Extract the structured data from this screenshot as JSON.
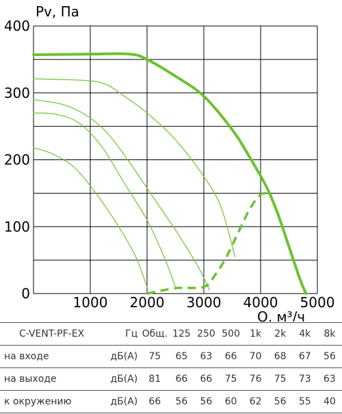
{
  "chart_data": {
    "type": "line",
    "ylabel": "Pv, Па",
    "xlabel": "Q, м³/ч",
    "xlim": [
      0,
      5000
    ],
    "ylim": [
      0,
      400
    ],
    "x_ticks": [
      "1000",
      "2000",
      "3000",
      "4000",
      "5000"
    ],
    "y_ticks": [
      "0",
      "100",
      "200",
      "300",
      "400"
    ],
    "grid": true,
    "series": [
      {
        "role": "main",
        "color": "#6cc132",
        "points": [
          [
            0,
            357
          ],
          [
            1000,
            358
          ],
          [
            1700,
            358
          ],
          [
            2000,
            350
          ],
          [
            2500,
            325
          ],
          [
            3000,
            295
          ],
          [
            3500,
            245
          ],
          [
            3800,
            205
          ],
          [
            4100,
            160
          ],
          [
            4300,
            120
          ],
          [
            4500,
            70
          ],
          [
            4700,
            20
          ],
          [
            4800,
            0
          ]
        ]
      },
      {
        "role": "speed-curve",
        "color": "#7dc343",
        "points": [
          [
            0,
            321
          ],
          [
            500,
            320
          ],
          [
            1000,
            318
          ],
          [
            1300,
            312
          ],
          [
            1600,
            295
          ],
          [
            2000,
            270
          ],
          [
            2500,
            230
          ],
          [
            3000,
            175
          ],
          [
            3300,
            130
          ],
          [
            3550,
            55
          ]
        ]
      },
      {
        "role": "speed-curve",
        "color": "#7dc343",
        "points": [
          [
            0,
            290
          ],
          [
            500,
            283
          ],
          [
            900,
            268
          ],
          [
            1300,
            240
          ],
          [
            1700,
            195
          ],
          [
            2100,
            145
          ],
          [
            2500,
            95
          ],
          [
            2900,
            40
          ],
          [
            3100,
            5
          ]
        ]
      },
      {
        "role": "speed-curve",
        "color": "#7dc343",
        "points": [
          [
            0,
            270
          ],
          [
            400,
            268
          ],
          [
            800,
            255
          ],
          [
            1200,
            220
          ],
          [
            1600,
            165
          ],
          [
            2000,
            110
          ],
          [
            2300,
            55
          ],
          [
            2500,
            10
          ]
        ]
      },
      {
        "role": "speed-curve",
        "color": "#7dc343",
        "points": [
          [
            0,
            218
          ],
          [
            300,
            210
          ],
          [
            700,
            190
          ],
          [
            1100,
            150
          ],
          [
            1500,
            100
          ],
          [
            1800,
            55
          ],
          [
            2000,
            10
          ]
        ]
      },
      {
        "role": "operating-limit",
        "color": "#6cc132",
        "dashed": true,
        "points": [
          [
            2000,
            0
          ],
          [
            2500,
            8
          ],
          [
            3000,
            10
          ],
          [
            3200,
            28
          ],
          [
            3400,
            55
          ],
          [
            3600,
            90
          ],
          [
            3800,
            125
          ],
          [
            4000,
            148
          ],
          [
            4200,
            150
          ]
        ]
      }
    ]
  },
  "table": {
    "model": "C-VENT-PF-EX",
    "unit_header": "Гц",
    "columns": [
      "Общ.",
      "125",
      "250",
      "500",
      "1k",
      "2k",
      "4k",
      "8k"
    ],
    "rows": [
      {
        "label": "на входе",
        "unit": "дБ(А)",
        "values": [
          "75",
          "65",
          "63",
          "66",
          "70",
          "68",
          "67",
          "56"
        ]
      },
      {
        "label": "на выходе",
        "unit": "дБ(А)",
        "values": [
          "81",
          "66",
          "66",
          "75",
          "76",
          "75",
          "73",
          "63"
        ]
      },
      {
        "label": "к окружению",
        "unit": "дБ(А)",
        "values": [
          "66",
          "56",
          "56",
          "60",
          "62",
          "56",
          "55",
          "40"
        ]
      }
    ]
  }
}
